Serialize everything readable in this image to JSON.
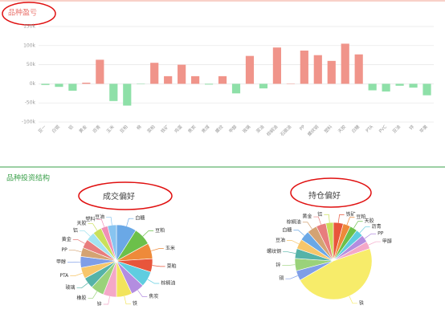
{
  "section_title": "品种投资结构",
  "chart_data": [
    {
      "type": "bar",
      "title": "品种盈亏",
      "categories": [
        "豆一",
        "白银",
        "铝",
        "黄金",
        "沥青",
        "玉米",
        "豆粕",
        "棉",
        "菜粕",
        "铁矿",
        "鸡蛋",
        "焦炭",
        "焦煤",
        "螺纹",
        "甲醇",
        "玻璃",
        "菜油",
        "棕榈油",
        "石脑油",
        "PP",
        "螺纹钢",
        "塑料",
        "天胶",
        "白糖",
        "PTA",
        "PVC",
        "豆油",
        "锌",
        "苹果"
      ],
      "values": [
        -3000,
        -8000,
        -18000,
        3000,
        63000,
        -45000,
        -57000,
        -1000,
        55000,
        20000,
        50000,
        20000,
        -2000,
        20000,
        -25000,
        73000,
        -12000,
        95000,
        1000,
        87000,
        75000,
        60000,
        105000,
        77000,
        -17000,
        -20000,
        -5000,
        -10000,
        -30000
      ],
      "positive_color": "#f0948a",
      "negative_color": "#8ee0a8",
      "ylim": [
        -100000,
        150000
      ],
      "yticks": [
        {
          "value": -100000,
          "label": "-100k"
        },
        {
          "value": -50000,
          "label": "-50k"
        },
        {
          "value": 0,
          "label": "0k"
        },
        {
          "value": 50000,
          "label": "50k"
        },
        {
          "value": 100000,
          "label": "100k"
        },
        {
          "value": 150000,
          "label": "150k"
        }
      ],
      "grid": true
    },
    {
      "type": "pie",
      "title": "成交偏好",
      "categories": [
        "白糖",
        "豆粕",
        "玉米",
        "菜粕",
        "棕榈油",
        "焦炭",
        "铁",
        "锌",
        "橡胶",
        "玻璃",
        "PTA",
        "甲醇",
        "PP",
        "黄金",
        "铝",
        "天胶",
        "塑料",
        "豆油"
      ],
      "values": [
        9,
        8,
        7,
        6,
        7,
        6,
        7,
        6,
        6,
        5,
        5,
        5,
        4,
        4,
        4,
        4,
        3,
        4
      ],
      "colors": [
        "#6aa8e6",
        "#6cc04a",
        "#ee8a3a",
        "#e8553b",
        "#5fcde0",
        "#b38de0",
        "#f2e45c",
        "#f4a8c8",
        "#9ad27a",
        "#55b3a8",
        "#f7c66a",
        "#7f9ee8",
        "#d4a373",
        "#e87d7d",
        "#a3e3f0",
        "#c9e05a",
        "#f08fb5",
        "#88c4f0"
      ]
    },
    {
      "type": "pie",
      "title": "持仓偏好",
      "categories": [
        "铁矿",
        "豆粕",
        "天胶",
        "沥青",
        "PP",
        "甲醇",
        "铁",
        "铜",
        "锌",
        "螺纹钢",
        "豆油",
        "白糖",
        "棕榈油",
        "黄金",
        "铝"
      ],
      "values": [
        4,
        3,
        3,
        3,
        3,
        3,
        45,
        4,
        5,
        4,
        4,
        4,
        4,
        4,
        3
      ],
      "colors": [
        "#e8553b",
        "#ee8a3a",
        "#6cc04a",
        "#5fcde0",
        "#b38de0",
        "#f4a8c8",
        "#f7ec6a",
        "#7f9ee8",
        "#9ad27a",
        "#55b3a8",
        "#f7c66a",
        "#6aa8e6",
        "#d4a373",
        "#e87d7d",
        "#c9e05a"
      ]
    }
  ]
}
